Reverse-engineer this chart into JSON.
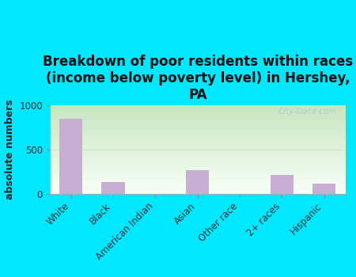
{
  "title": "Breakdown of poor residents within races\n(income below poverty level) in Hershey,\nPA",
  "categories": [
    "White",
    "Black",
    "American Indian",
    "Asian",
    "Other race",
    "2+ races",
    "Hispanic"
  ],
  "values": [
    850,
    130,
    0,
    270,
    0,
    210,
    120
  ],
  "bar_color": "#c9aed4",
  "ylabel": "absolute numbers",
  "ylim": [
    0,
    1000
  ],
  "yticks": [
    0,
    500,
    1000
  ],
  "background_outer": "#00e8ff",
  "bg_color_top_left": "#c8e6c0",
  "bg_color_top_right": "#e8f5e9",
  "bg_color_bottom_left": "#f0f8f0",
  "bg_color_bottom_right": "#ffffff",
  "title_fontsize": 12,
  "axis_label_fontsize": 9,
  "tick_fontsize": 8.5,
  "watermark": "City-Data.com",
  "watermark_color": "#b0c8d0",
  "grid_color": "#d0e8d0",
  "spine_color": "#aaaaaa"
}
